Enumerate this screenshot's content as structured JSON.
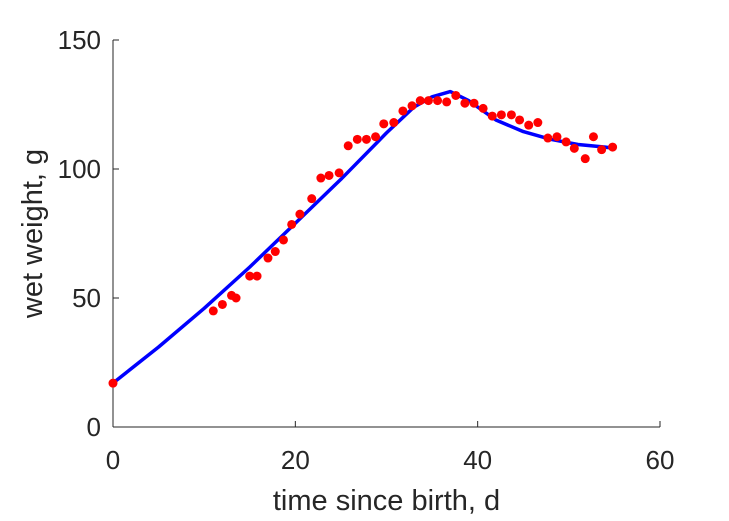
{
  "chart_data": {
    "type": "scatter",
    "title": "",
    "xlabel": "time since birth, d",
    "ylabel": "wet weight, g",
    "xlim": [
      0,
      60
    ],
    "ylim": [
      0,
      150
    ],
    "xticks": [
      0,
      20,
      40,
      60
    ],
    "yticks": [
      0,
      50,
      100,
      150
    ],
    "grid": false,
    "colors": {
      "points": "#ff0000",
      "curve": "#0000ff",
      "axis": "#262626"
    },
    "series": [
      {
        "kind": "scatter",
        "points": [
          [
            0,
            17
          ],
          [
            11,
            45
          ],
          [
            12,
            47.5
          ],
          [
            13,
            51
          ],
          [
            13.5,
            50
          ],
          [
            15,
            58.5
          ],
          [
            15.8,
            58.5
          ],
          [
            17,
            65.5
          ],
          [
            17.8,
            68
          ],
          [
            18.7,
            72.5
          ],
          [
            19.6,
            78.5
          ],
          [
            20.5,
            82.5
          ],
          [
            21.8,
            88.5
          ],
          [
            22.8,
            96.5
          ],
          [
            23.7,
            97.5
          ],
          [
            24.8,
            98.5
          ],
          [
            25.8,
            109
          ],
          [
            26.8,
            111.5
          ],
          [
            27.8,
            111.5
          ],
          [
            28.8,
            112.5
          ],
          [
            29.7,
            117.5
          ],
          [
            30.8,
            118
          ],
          [
            31.8,
            122.5
          ],
          [
            32.8,
            124.5
          ],
          [
            33.7,
            126.5
          ],
          [
            34.6,
            126.5
          ],
          [
            35.6,
            126.5
          ],
          [
            36.6,
            126
          ],
          [
            37.6,
            128.5
          ],
          [
            38.6,
            125.5
          ],
          [
            39.6,
            125.5
          ],
          [
            40.6,
            123.5
          ],
          [
            41.6,
            120.5
          ],
          [
            42.6,
            121
          ],
          [
            43.7,
            121
          ],
          [
            44.6,
            119
          ],
          [
            45.6,
            117
          ],
          [
            46.6,
            118
          ],
          [
            47.7,
            112
          ],
          [
            48.7,
            112.5
          ],
          [
            49.7,
            110.5
          ],
          [
            50.6,
            108
          ],
          [
            51.8,
            104
          ],
          [
            52.7,
            112.5
          ],
          [
            53.6,
            107.5
          ],
          [
            54.8,
            108.5
          ]
        ]
      },
      {
        "kind": "line",
        "points": [
          [
            0,
            17
          ],
          [
            5,
            31
          ],
          [
            10,
            46
          ],
          [
            15,
            62
          ],
          [
            20,
            79
          ],
          [
            25,
            96
          ],
          [
            30,
            114
          ],
          [
            33,
            124
          ],
          [
            35,
            128
          ],
          [
            37,
            130
          ],
          [
            39,
            126.5
          ],
          [
            42,
            119
          ],
          [
            45,
            114.5
          ],
          [
            48,
            111.5
          ],
          [
            51,
            109.5
          ],
          [
            54,
            108.5
          ],
          [
            55,
            108
          ]
        ]
      }
    ]
  }
}
